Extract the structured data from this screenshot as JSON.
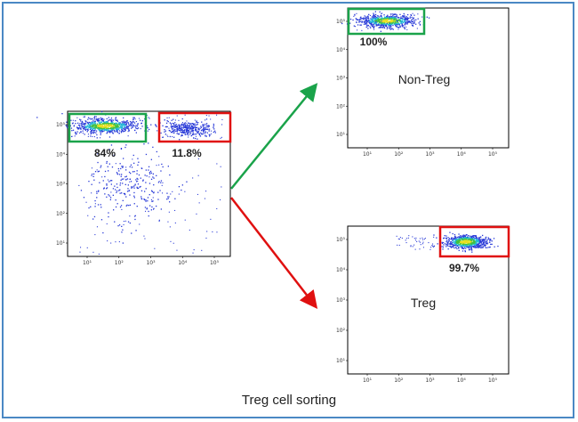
{
  "caption": "Treg cell sorting",
  "plots": {
    "source": {
      "gates": [
        "84%",
        "11.8%"
      ]
    },
    "nontreg": {
      "name": "Non-Treg",
      "gate": "100%"
    },
    "treg": {
      "name": "Treg",
      "gate": "99.7%"
    }
  },
  "axis_ticks": {
    "y": [
      "10⁵",
      "10⁴",
      "10³",
      "10²",
      "10¹"
    ],
    "x": [
      "10¹",
      "10²",
      "10³",
      "10⁴",
      "10⁵"
    ]
  },
  "colors": {
    "green_gate": "#1aa34a",
    "red_gate": "#e01010",
    "frame": "#4a88c4"
  }
}
